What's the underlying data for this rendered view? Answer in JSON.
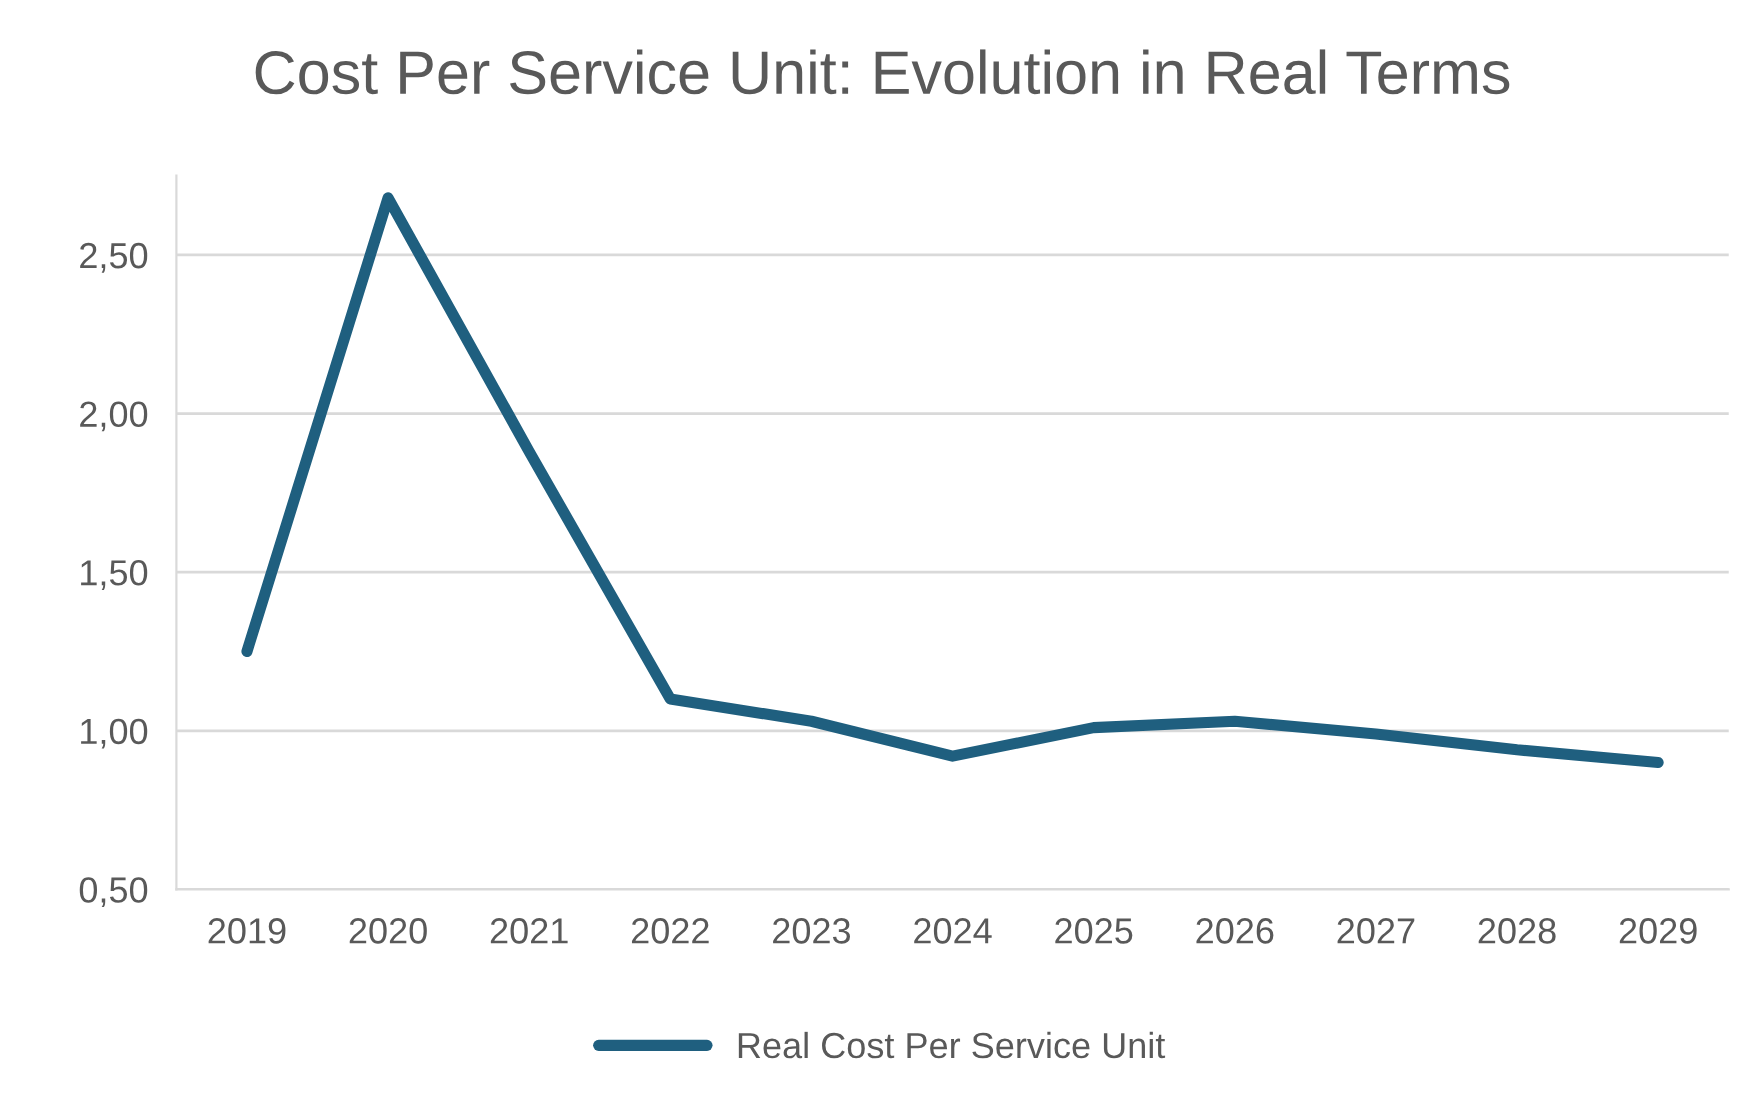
{
  "chart_data": {
    "type": "line",
    "title": "Cost Per Service Unit: Evolution in Real Terms",
    "categories": [
      "2019",
      "2020",
      "2021",
      "2022",
      "2023",
      "2024",
      "2025",
      "2026",
      "2027",
      "2028",
      "2029"
    ],
    "series": [
      {
        "name": "Real Cost Per Service Unit",
        "color": "#1f5f7f",
        "values": [
          1.25,
          2.68,
          1.88,
          1.1,
          1.03,
          0.92,
          1.01,
          1.03,
          0.99,
          0.94,
          0.9
        ]
      }
    ],
    "ylim": [
      0.5,
      2.75
    ],
    "yticks": [
      {
        "value": 0.5,
        "label": "0,50"
      },
      {
        "value": 1.0,
        "label": "1,00"
      },
      {
        "value": 1.5,
        "label": "1,50"
      },
      {
        "value": 2.0,
        "label": "2,00"
      },
      {
        "value": 2.5,
        "label": "2,50"
      }
    ],
    "grid": "y",
    "legend": "bottom",
    "marker": "none",
    "line_style": "solid"
  }
}
